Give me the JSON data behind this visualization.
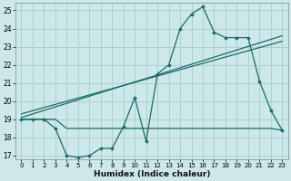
{
  "xlabel": "Humidex (Indice chaleur)",
  "bg_color": "#cce8e8",
  "grid_color": "#aacccc",
  "line_color": "#1a6b6b",
  "xlim": [
    -0.5,
    23.5
  ],
  "ylim": [
    16.8,
    25.4
  ],
  "xticks": [
    0,
    1,
    2,
    3,
    4,
    5,
    6,
    7,
    8,
    9,
    10,
    11,
    12,
    13,
    14,
    15,
    16,
    17,
    18,
    19,
    20,
    21,
    22,
    23
  ],
  "yticks": [
    17,
    18,
    19,
    20,
    21,
    22,
    23,
    24,
    25
  ],
  "line1_x": [
    0,
    1,
    2,
    3,
    4,
    5,
    6,
    7,
    8,
    9,
    10,
    11,
    12,
    13,
    14,
    15,
    16,
    17,
    18,
    19,
    20,
    21,
    22,
    23
  ],
  "line1_y": [
    19,
    19,
    19,
    18.5,
    17.0,
    16.9,
    17.0,
    17.4,
    17.4,
    18.6,
    20.2,
    17.8,
    21.5,
    22.0,
    24.0,
    24.8,
    25.2,
    23.8,
    23.5,
    23.5,
    23.5,
    21.1,
    19.5,
    18.4
  ],
  "line2_x": [
    0,
    1,
    2,
    3,
    4,
    5,
    6,
    7,
    8,
    9,
    10,
    11,
    12,
    13,
    14,
    15,
    16,
    17,
    18,
    19,
    20,
    21,
    22,
    23
  ],
  "line2_y": [
    19,
    19,
    19,
    19,
    18.5,
    18.5,
    18.5,
    18.5,
    18.5,
    18.5,
    18.5,
    18.5,
    18.5,
    18.5,
    18.5,
    18.5,
    18.5,
    18.5,
    18.5,
    18.5,
    18.5,
    18.5,
    18.5,
    18.4
  ],
  "line3_x": [
    0,
    23
  ],
  "line3_y": [
    19.1,
    23.6
  ],
  "line4_x": [
    0,
    23
  ],
  "line4_y": [
    19.3,
    23.3
  ]
}
